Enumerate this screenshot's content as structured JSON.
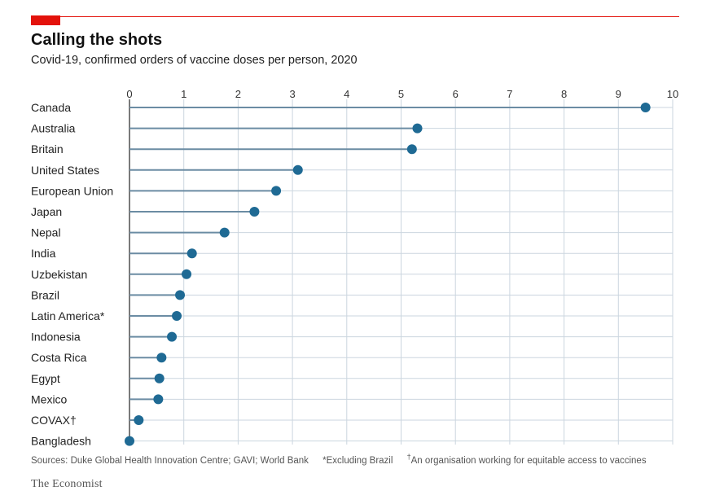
{
  "header": {
    "title": "Calling the shots",
    "subtitle": "Covid-19, confirmed orders of vaccine doses per person, 2020"
  },
  "footer": {
    "sources": "Sources: Duke Global Health Innovation Centre; GAVI; World Bank",
    "note1": "*Excluding Brazil",
    "note2_mark": "†",
    "note2": "An organisation working for equitable access to vaccines",
    "brand": "The Economist"
  },
  "colors": {
    "accent": "#e3120b",
    "series": "#1f6a94",
    "stem": "#6b8ca3",
    "grid": "#cbd6df"
  },
  "chart_data": {
    "type": "lollipop",
    "orientation": "horizontal",
    "categories": [
      "Canada",
      "Australia",
      "Britain",
      "United States",
      "European Union",
      "Japan",
      "Nepal",
      "India",
      "Uzbekistan",
      "Brazil",
      "Latin America*",
      "Indonesia",
      "Costa Rica",
      "Egypt",
      "Mexico",
      "COVAX†",
      "Bangladesh"
    ],
    "values": [
      9.5,
      5.3,
      5.2,
      3.1,
      2.7,
      2.3,
      1.75,
      1.15,
      1.05,
      0.93,
      0.87,
      0.78,
      0.59,
      0.55,
      0.53,
      0.17,
      0.0
    ],
    "xlim": [
      0,
      10
    ],
    "xticks": [
      0,
      1,
      2,
      3,
      4,
      5,
      6,
      7,
      8,
      9,
      10
    ],
    "xtick_labels": [
      "0",
      "1",
      "2",
      "3",
      "4",
      "5",
      "6",
      "7",
      "8",
      "9",
      "10"
    ],
    "x_axis_position": "top",
    "grid": true
  }
}
